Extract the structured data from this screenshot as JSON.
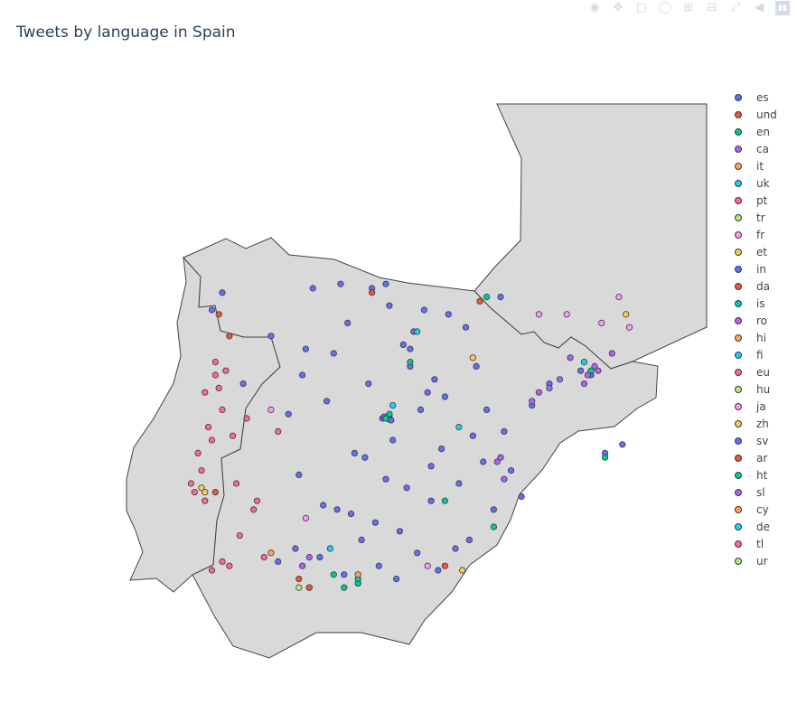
{
  "title": "Tweets by language in Spain",
  "modebar": {
    "icons": [
      "camera-icon",
      "pan-icon",
      "box-select-icon",
      "lasso-icon",
      "zoom-in-icon",
      "zoom-out-icon",
      "autoscale-icon",
      "hover-icon",
      "plotly-logo-icon"
    ]
  },
  "chart_data": {
    "type": "scatter",
    "title": "Tweets by language in Spain",
    "legend_placement": "right",
    "colors": {
      "land": "#d9d9d9",
      "border": "#444444",
      "marker_outline": "#444444"
    },
    "legend": [
      {
        "name": "es",
        "color": "#636efa"
      },
      {
        "name": "und",
        "color": "#EF553B"
      },
      {
        "name": "en",
        "color": "#00cc96"
      },
      {
        "name": "ca",
        "color": "#ab63fa"
      },
      {
        "name": "it",
        "color": "#FFA15A"
      },
      {
        "name": "uk",
        "color": "#19d3f3"
      },
      {
        "name": "pt",
        "color": "#FF6692"
      },
      {
        "name": "tr",
        "color": "#B6E880"
      },
      {
        "name": "fr",
        "color": "#FF97FF"
      },
      {
        "name": "et",
        "color": "#FECB52"
      },
      {
        "name": "in",
        "color": "#636efa"
      },
      {
        "name": "da",
        "color": "#EF553B"
      },
      {
        "name": "is",
        "color": "#00cc96"
      },
      {
        "name": "ro",
        "color": "#ab63fa"
      },
      {
        "name": "hi",
        "color": "#FFA15A"
      },
      {
        "name": "fi",
        "color": "#19d3f3"
      },
      {
        "name": "eu",
        "color": "#FF6692"
      },
      {
        "name": "hu",
        "color": "#B6E880"
      },
      {
        "name": "ja",
        "color": "#FF97FF"
      },
      {
        "name": "zh",
        "color": "#FECB52"
      },
      {
        "name": "sv",
        "color": "#636efa"
      },
      {
        "name": "ar",
        "color": "#EF553B"
      },
      {
        "name": "ht",
        "color": "#00cc96"
      },
      {
        "name": "sl",
        "color": "#ab63fa"
      },
      {
        "name": "cy",
        "color": "#FFA15A"
      },
      {
        "name": "de",
        "color": "#19d3f3"
      },
      {
        "name": "tl",
        "color": "#FF6692"
      },
      {
        "name": "ur",
        "color": "#B6E880"
      }
    ],
    "series": [
      {
        "name": "es",
        "lon": [
          -8.4,
          -5.8,
          -3.7,
          -3.6,
          -0.4,
          -2.9,
          -4.8,
          -6.0,
          -1.1,
          -3.0,
          -1.9,
          -2.5,
          -4.2,
          -5.4,
          -6.5,
          -3.8,
          -2.7,
          -3.5,
          -4.6,
          -0.9,
          -3.7,
          -3.1,
          -2.4,
          -5.1,
          -4.0,
          -1.6,
          -0.1,
          -2.1,
          -3.3,
          -4.4,
          -5.6,
          -6.3,
          -1.3,
          -0.6,
          0.2,
          -2.8,
          -3.9,
          -4.9,
          -5.9,
          -6.8,
          -2.2,
          -1.7,
          -3.4,
          -4.5,
          -0.3,
          -2.0,
          -3.2,
          -5.2,
          -6.1,
          -7.0,
          -1.4,
          -2.6,
          -4.1,
          -5.0,
          -3.6,
          -0.8,
          1.0,
          1.9,
          2.2,
          -8.7,
          -7.8,
          -4.3,
          -3.7,
          -3.6,
          -3.65,
          -3.75,
          -3.55,
          -2.3,
          -1.2,
          0.5,
          -4.7,
          -5.5,
          -6.2,
          -3.0,
          -2.4,
          2.6,
          3.1
        ],
        "lat": [
          43.3,
          43.4,
          43.5,
          43.0,
          43.2,
          42.4,
          42.6,
          42.0,
          41.6,
          41.6,
          42.8,
          41.0,
          41.2,
          40.8,
          40.5,
          40.4,
          40.6,
          39.9,
          39.6,
          39.4,
          39.0,
          38.8,
          38.5,
          38.3,
          38.0,
          38.9,
          39.2,
          39.7,
          37.8,
          37.6,
          37.2,
          37.4,
          37.6,
          38.3,
          38.6,
          37.3,
          37.0,
          36.8,
          36.5,
          37.1,
          36.9,
          37.4,
          36.7,
          36.6,
          40.1,
          40.9,
          42.1,
          41.9,
          41.4,
          42.3,
          42.5,
          42.9,
          43.4,
          43.5,
          40.45,
          40.6,
          41.2,
          41.5,
          41.4,
          42.9,
          41.2,
          39.5,
          40.42,
          40.38,
          40.4,
          40.44,
          40.36,
          41.3,
          40.0,
          40.7,
          38.2,
          38.4,
          39.1,
          42.0,
          39.3,
          39.6,
          39.8
        ]
      },
      {
        "name": "und",
        "lon": [
          -8.5,
          -8.2,
          -4.1,
          -1.0,
          -8.6,
          -6.2,
          -2.0,
          -5.9
        ],
        "lat": [
          42.8,
          42.3,
          43.3,
          43.1,
          38.7,
          36.7,
          37.0,
          36.5
        ]
      },
      {
        "name": "en",
        "lon": [
          -4.9,
          -4.5,
          -3.7,
          -3.6,
          -0.8,
          -2.0,
          -0.6,
          -3.0,
          -4.5,
          -5.2,
          2.2,
          2.6
        ],
        "lat": [
          36.5,
          36.6,
          40.4,
          40.5,
          43.2,
          38.5,
          37.9,
          41.7,
          36.7,
          36.8,
          41.5,
          39.5
        ]
      },
      {
        "name": "ca",
        "lon": [
          2.1,
          2.3,
          1.6,
          1.0,
          0.5,
          2.8,
          2.0,
          1.3,
          0.7,
          2.4,
          -0.4,
          -0.3,
          -5.9,
          -6.1,
          -0.5
        ],
        "lat": [
          41.4,
          41.6,
          41.8,
          41.1,
          40.8,
          41.9,
          41.2,
          41.3,
          41.0,
          41.5,
          39.5,
          39.0,
          37.2,
          37.0,
          39.4
        ]
      },
      {
        "name": "it",
        "lon": [
          -4.5,
          -7.0
        ],
        "lat": [
          36.8,
          37.3
        ]
      },
      {
        "name": "uk",
        "lon": [
          -2.8,
          -3.5,
          -1.6,
          2.0,
          -5.3
        ],
        "lat": [
          42.4,
          40.7,
          40.2,
          41.7,
          37.4
        ]
      },
      {
        "name": "pt",
        "lon": [
          -8.6,
          -8.5,
          -8.4,
          -8.8,
          -9.1,
          -9.2,
          -8.9,
          -8.3,
          -8.1,
          -8.7,
          -8.0,
          -7.4,
          -8.6,
          -8.9,
          -9.0,
          -9.3,
          -7.5,
          -8.4,
          -8.2,
          -7.2,
          -6.8,
          -7.9,
          -8.7,
          -7.7
        ],
        "lat": [
          41.4,
          41.1,
          40.6,
          40.2,
          39.6,
          38.7,
          38.5,
          41.5,
          40.0,
          39.9,
          38.9,
          38.5,
          41.7,
          41.0,
          39.2,
          38.9,
          38.3,
          37.1,
          37.0,
          37.2,
          40.1,
          37.7,
          36.9,
          40.4
        ]
      },
      {
        "name": "tr",
        "lon": [
          -6.2
        ],
        "lat": [
          36.5
        ]
      },
      {
        "name": "fr",
        "lon": [
          0.7,
          1.5,
          3.0,
          3.3,
          2.5,
          -7.0,
          -6.0,
          -2.5
        ],
        "lat": [
          42.8,
          42.8,
          43.2,
          42.5,
          42.6,
          40.6,
          38.1,
          37.0
        ]
      },
      {
        "name": "et",
        "lon": [
          -9.0,
          -8.9,
          -1.2,
          3.2,
          -1.5
        ],
        "lat": [
          38.8,
          38.7,
          41.8,
          42.8,
          36.9
        ]
      }
    ]
  }
}
